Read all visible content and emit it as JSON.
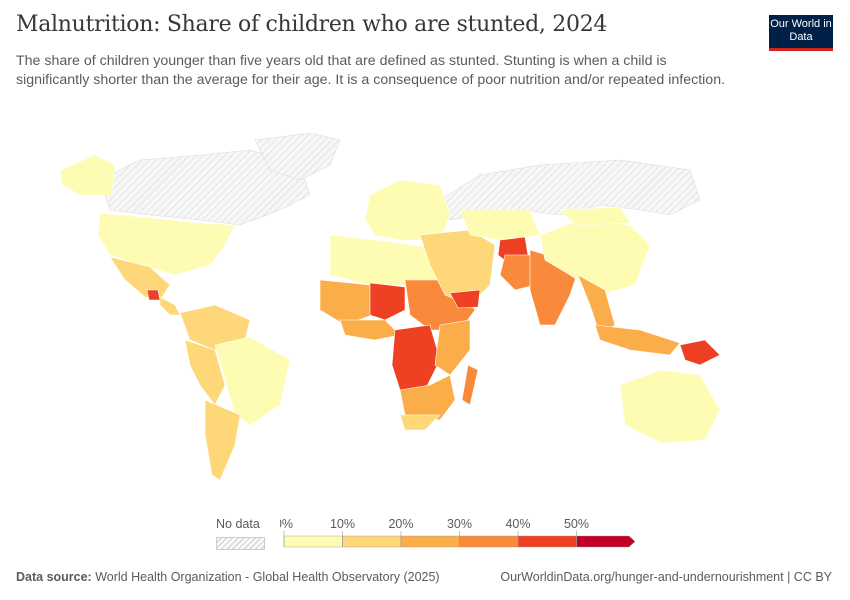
{
  "header": {
    "title": "Malnutrition: Share of children who are stunted, 2024",
    "subtitle": "The share of children younger than five years old that are defined as stunted. Stunting is when a child is significantly shorter than the average for their age. It is a consequence of poor nutrition and/or repeated infection.",
    "logo": "Our World in Data"
  },
  "legend": {
    "no_data_label": "No data",
    "ticks": [
      "0%",
      "10%",
      "20%",
      "30%",
      "40%",
      "50%"
    ],
    "bins": [
      {
        "range": "0-10%",
        "color": "#fefbb2"
      },
      {
        "range": "10-20%",
        "color": "#fdd778"
      },
      {
        "range": "20-30%",
        "color": "#fbad4a"
      },
      {
        "range": "30-40%",
        "color": "#f98a3b"
      },
      {
        "range": "40-50%",
        "color": "#ee4123"
      },
      {
        "range": ">50%",
        "color": "#c20027"
      }
    ],
    "no_data_color": "#eeeeee"
  },
  "map_regions": [
    {
      "name": "Canada",
      "bin": null
    },
    {
      "name": "Greenland",
      "bin": null
    },
    {
      "name": "Russia",
      "bin": null
    },
    {
      "name": "Alaska",
      "bin": 0
    },
    {
      "name": "United States",
      "bin": 0
    },
    {
      "name": "Mexico",
      "bin": 1
    },
    {
      "name": "Guatemala",
      "bin": 4
    },
    {
      "name": "Central America",
      "bin": 1
    },
    {
      "name": "Northern South America",
      "bin": 1
    },
    {
      "name": "Brazil",
      "bin": 0
    },
    {
      "name": "Peru/Bolivia",
      "bin": 1
    },
    {
      "name": "Southern Cone",
      "bin": 1
    },
    {
      "name": "Europe",
      "bin": 0
    },
    {
      "name": "North Africa",
      "bin": 0
    },
    {
      "name": "Sahel West",
      "bin": 2
    },
    {
      "name": "Niger",
      "bin": 4
    },
    {
      "name": "Sudan/Ethiopia",
      "bin": 3
    },
    {
      "name": "West Africa Coast",
      "bin": 2
    },
    {
      "name": "DR Congo/Angola",
      "bin": 4
    },
    {
      "name": "East Africa",
      "bin": 2
    },
    {
      "name": "Southern Africa",
      "bin": 2
    },
    {
      "name": "South Africa",
      "bin": 1
    },
    {
      "name": "Madagascar",
      "bin": 3
    },
    {
      "name": "Middle East",
      "bin": 1
    },
    {
      "name": "Yemen",
      "bin": 4
    },
    {
      "name": "Afghanistan",
      "bin": 4
    },
    {
      "name": "Pakistan",
      "bin": 3
    },
    {
      "name": "India",
      "bin": 3
    },
    {
      "name": "Central Asia",
      "bin": 0
    },
    {
      "name": "China",
      "bin": 0
    },
    {
      "name": "Mongolia",
      "bin": 0
    },
    {
      "name": "Southeast Asia",
      "bin": 2
    },
    {
      "name": "Indonesia",
      "bin": 2
    },
    {
      "name": "Papua New Guinea",
      "bin": 4
    },
    {
      "name": "Australia",
      "bin": 0
    }
  ],
  "footer": {
    "source_label": "Data source:",
    "source": "World Health Organization - Global Health Observatory (2025)",
    "url": "OurWorldinData.org/hunger-and-undernourishment | CC BY"
  }
}
